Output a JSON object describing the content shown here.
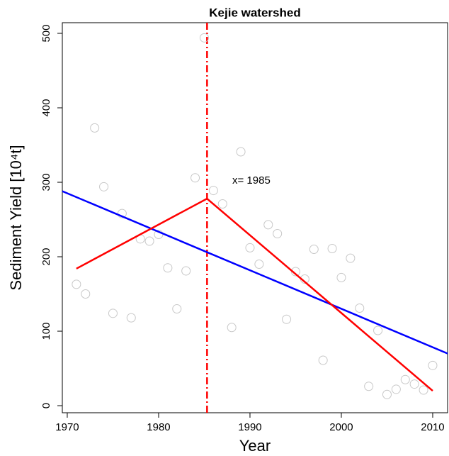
{
  "chart_data": {
    "type": "scatter",
    "title": "Kejie watershed",
    "x_label": "Year",
    "y_label": "Sediment Yield [10⁴t]",
    "x": [
      1971,
      1972,
      1973,
      1974,
      1975,
      1976,
      1977,
      1978,
      1979,
      1980,
      1981,
      1982,
      1983,
      1984,
      1985,
      1986,
      1987,
      1988,
      1989,
      1990,
      1991,
      1992,
      1993,
      1994,
      1995,
      1996,
      1997,
      1998,
      1999,
      2000,
      2001,
      2002,
      2003,
      2004,
      2005,
      2006,
      2007,
      2008,
      2009,
      2010
    ],
    "values": [
      163,
      150,
      373,
      294,
      124,
      258,
      118,
      224,
      221,
      230,
      185,
      130,
      181,
      306,
      494,
      289,
      271,
      105,
      341,
      212,
      190,
      243,
      231,
      116,
      180,
      170,
      210,
      61,
      211,
      172,
      198,
      131,
      26,
      101,
      15,
      22,
      35,
      29,
      21,
      54
    ],
    "color": "#c8c8c8",
    "lines": [
      {
        "x": [
          1969.46,
          2011.63
        ],
        "values": [
          288,
          70
        ],
        "color": "#0000ff"
      },
      {
        "x": [
          1971,
          1985.3,
          2010
        ],
        "values": [
          184,
          278,
          20
        ],
        "color": "#ff0000"
      }
    ],
    "breakpoint": {
      "x": 1985.3,
      "color": "#ff0000",
      "label": "x= 1985"
    },
    "xlim": [
      1969.46,
      2011.63
    ],
    "ylim": [
      -9.5,
      514.3
    ],
    "xticks": [
      1970,
      1980,
      1990,
      2000,
      2010
    ],
    "yticks": [
      0,
      100,
      200,
      300,
      400,
      500
    ]
  }
}
